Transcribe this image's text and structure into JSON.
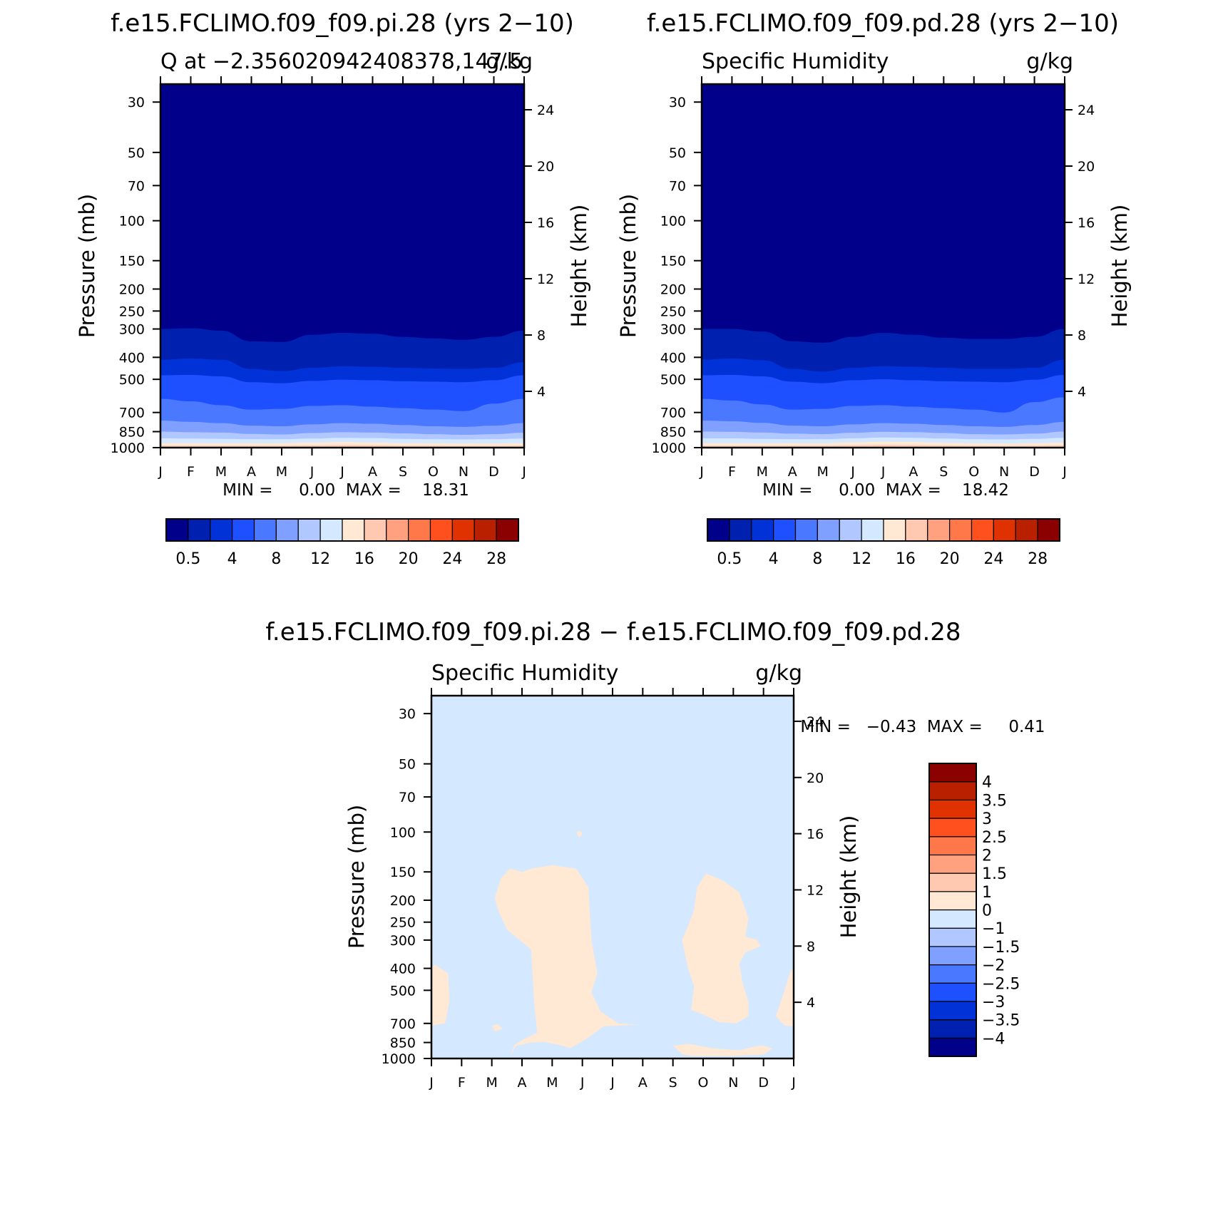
{
  "chart_data": [
    {
      "type": "heatmap",
      "title": "f.e15.FCLIMO.f09_f09.pi.28 (yrs 2−10)",
      "subtitle_left": "Q at −2.356020942408378,147.5",
      "subtitle_right": "g/kg",
      "ylabel": "Pressure (mb)",
      "ylabel_right": "Height (km)",
      "pressure_ticks": [
        30,
        50,
        70,
        100,
        150,
        200,
        250,
        300,
        400,
        500,
        700,
        850,
        1000
      ],
      "height_ticks": [
        4,
        8,
        12,
        16,
        20,
        24
      ],
      "months": [
        "J",
        "F",
        "M",
        "A",
        "M",
        "J",
        "J",
        "A",
        "S",
        "O",
        "N",
        "D",
        "J"
      ],
      "ylim": [
        1000,
        25
      ],
      "stats": "MIN =     0.00  MAX =    18.31",
      "colorbar": {
        "colors": [
          "#00008b",
          "#0020b0",
          "#0032d8",
          "#1e50ff",
          "#4a78ff",
          "#7fa0ff",
          "#b0c8ff",
          "#d4e8ff",
          "#ffe8d4",
          "#ffc8b0",
          "#ffa07f",
          "#ff784a",
          "#ff501e",
          "#e03200",
          "#b82000",
          "#8b0000"
        ],
        "labels": [
          "0.5",
          "4",
          "8",
          "12",
          "16",
          "20",
          "24",
          "28"
        ]
      },
      "layers": [
        {
          "top_pressure": [
            300,
            298,
            305,
            340,
            342,
            318,
            312,
            315,
            325,
            330,
            335,
            325,
            305
          ],
          "color": "#0020b0"
        },
        {
          "top_pressure": [
            410,
            405,
            410,
            450,
            460,
            445,
            438,
            440,
            445,
            448,
            450,
            445,
            420
          ],
          "color": "#0032d8"
        },
        {
          "top_pressure": [
            480,
            478,
            485,
            515,
            520,
            508,
            502,
            505,
            510,
            512,
            515,
            505,
            480
          ],
          "color": "#1e50ff"
        },
        {
          "top_pressure": [
            610,
            625,
            650,
            680,
            675,
            655,
            650,
            660,
            670,
            680,
            690,
            640,
            610
          ],
          "color": "#4a78ff"
        },
        {
          "top_pressure": [
            760,
            770,
            780,
            800,
            805,
            790,
            780,
            785,
            795,
            805,
            810,
            800,
            780
          ],
          "color": "#7fa0ff"
        },
        {
          "top_pressure": [
            850,
            855,
            858,
            870,
            875,
            862,
            855,
            858,
            865,
            872,
            878,
            872,
            860
          ],
          "color": "#b0c8ff"
        },
        {
          "top_pressure": [
            910,
            912,
            915,
            918,
            918,
            912,
            905,
            908,
            915,
            918,
            920,
            918,
            912
          ],
          "color": "#d4e8ff"
        },
        {
          "top_pressure": [
            955,
            955,
            955,
            955,
            955,
            950,
            945,
            948,
            955,
            955,
            958,
            958,
            955
          ],
          "color": "#ffe8d4"
        },
        {
          "top_pressure": [
            980,
            980,
            980,
            980,
            980,
            978,
            975,
            976,
            980,
            980,
            982,
            982,
            980
          ],
          "color": "#ffc8b0"
        }
      ],
      "background_color": "#00008b"
    },
    {
      "type": "heatmap",
      "title": "f.e15.FCLIMO.f09_f09.pd.28 (yrs 2−10)",
      "subtitle_left": "Specific Humidity",
      "subtitle_right": "g/kg",
      "ylabel": "Pressure (mb)",
      "ylabel_right": "Height (km)",
      "pressure_ticks": [
        30,
        50,
        70,
        100,
        150,
        200,
        250,
        300,
        400,
        500,
        700,
        850,
        1000
      ],
      "height_ticks": [
        4,
        8,
        12,
        16,
        20,
        24
      ],
      "months": [
        "J",
        "F",
        "M",
        "A",
        "M",
        "J",
        "J",
        "A",
        "S",
        "O",
        "N",
        "D",
        "J"
      ],
      "ylim": [
        1000,
        25
      ],
      "stats": "MIN =     0.00  MAX =    18.42",
      "colorbar": {
        "colors": [
          "#00008b",
          "#0020b0",
          "#0032d8",
          "#1e50ff",
          "#4a78ff",
          "#7fa0ff",
          "#b0c8ff",
          "#d4e8ff",
          "#ffe8d4",
          "#ffc8b0",
          "#ffa07f",
          "#ff784a",
          "#ff501e",
          "#e03200",
          "#b82000",
          "#8b0000"
        ],
        "labels": [
          "0.5",
          "4",
          "8",
          "12",
          "16",
          "20",
          "24",
          "28"
        ]
      },
      "layers": [
        {
          "top_pressure": [
            300,
            300,
            308,
            340,
            345,
            325,
            312,
            318,
            328,
            332,
            332,
            325,
            300
          ],
          "color": "#0020b0"
        },
        {
          "top_pressure": [
            410,
            405,
            412,
            450,
            462,
            445,
            438,
            440,
            445,
            450,
            450,
            445,
            410
          ],
          "color": "#0032d8"
        },
        {
          "top_pressure": [
            480,
            478,
            485,
            512,
            520,
            505,
            500,
            505,
            510,
            512,
            515,
            502,
            478
          ],
          "color": "#1e50ff"
        },
        {
          "top_pressure": [
            610,
            620,
            645,
            680,
            675,
            655,
            650,
            660,
            670,
            680,
            700,
            630,
            600
          ],
          "color": "#4a78ff"
        },
        {
          "top_pressure": [
            760,
            765,
            778,
            800,
            805,
            790,
            780,
            785,
            795,
            805,
            810,
            795,
            770
          ],
          "color": "#7fa0ff"
        },
        {
          "top_pressure": [
            850,
            852,
            858,
            868,
            872,
            860,
            852,
            855,
            862,
            872,
            875,
            868,
            850
          ],
          "color": "#b0c8ff"
        },
        {
          "top_pressure": [
            910,
            910,
            915,
            918,
            918,
            910,
            903,
            905,
            912,
            918,
            920,
            915,
            905
          ],
          "color": "#d4e8ff"
        },
        {
          "top_pressure": [
            955,
            955,
            955,
            955,
            955,
            948,
            942,
            945,
            952,
            955,
            958,
            955,
            950
          ],
          "color": "#ffe8d4"
        },
        {
          "top_pressure": [
            980,
            980,
            980,
            980,
            980,
            976,
            972,
            974,
            978,
            980,
            982,
            980,
            978
          ],
          "color": "#ffc8b0"
        }
      ],
      "background_color": "#00008b"
    },
    {
      "type": "heatmap",
      "title": "f.e15.FCLIMO.f09_f09.pi.28 − f.e15.FCLIMO.f09_f09.pd.28",
      "subtitle_left": "Specific Humidity",
      "subtitle_right": "g/kg",
      "ylabel": "Pressure (mb)",
      "ylabel_right": "Height (km)",
      "pressure_ticks": [
        30,
        50,
        70,
        100,
        150,
        200,
        250,
        300,
        400,
        500,
        700,
        850,
        1000
      ],
      "height_ticks": [
        4,
        8,
        12,
        16,
        20,
        24
      ],
      "months": [
        "J",
        "F",
        "M",
        "A",
        "M",
        "J",
        "J",
        "A",
        "S",
        "O",
        "N",
        "D",
        "J"
      ],
      "ylim": [
        1000,
        25
      ],
      "stats": "MIN =   −0.43  MAX =     0.41",
      "colorbar": {
        "colors": [
          "#00008b",
          "#0020b0",
          "#0032d8",
          "#1e50ff",
          "#4a78ff",
          "#7fa0ff",
          "#b0c8ff",
          "#d4e8ff",
          "#ffe8d4",
          "#ffc8b0",
          "#ffa07f",
          "#ff784a",
          "#ff501e",
          "#e03200",
          "#b82000",
          "#8b0000"
        ],
        "labels": [
          "−4",
          "−3.5",
          "−3",
          "−2.5",
          "−2",
          "−1.5",
          "−1",
          "0",
          "1",
          "1.5",
          "2",
          "2.5",
          "3",
          "3.5",
          "4"
        ]
      },
      "background_color": "#d4e8ff",
      "positive_color": "#ffe8d4",
      "positive_regions": [
        [
          [
            0.0,
            400
          ],
          [
            0.1,
            385
          ],
          [
            0.55,
            420
          ],
          [
            0.6,
            560
          ],
          [
            0.45,
            700
          ],
          [
            0.0,
            715
          ]
        ],
        [
          [
            2.0,
            720
          ],
          [
            2.2,
            705
          ],
          [
            2.35,
            740
          ],
          [
            2.1,
            760
          ]
        ],
        [
          [
            2.6,
            980
          ],
          [
            2.8,
            880
          ],
          [
            3.3,
            850
          ],
          [
            3.7,
            845
          ],
          [
            4.2,
            870
          ],
          [
            4.6,
            900
          ],
          [
            5.2,
            810
          ],
          [
            5.7,
            720
          ],
          [
            6.9,
            710
          ],
          [
            6.2,
            700
          ],
          [
            5.6,
            620
          ],
          [
            5.3,
            510
          ],
          [
            5.5,
            420
          ],
          [
            5.3,
            300
          ],
          [
            5.2,
            175
          ],
          [
            4.8,
            145
          ],
          [
            4.0,
            140
          ],
          [
            3.3,
            145
          ],
          [
            3.0,
            150
          ],
          [
            2.6,
            145
          ],
          [
            2.3,
            160
          ],
          [
            2.1,
            195
          ],
          [
            2.2,
            220
          ],
          [
            2.5,
            270
          ],
          [
            3.3,
            330
          ],
          [
            3.4,
            560
          ],
          [
            3.5,
            770
          ],
          [
            3.0,
            830
          ],
          [
            2.75,
            870
          ]
        ],
        [
          [
            8.0,
            880
          ],
          [
            8.5,
            860
          ],
          [
            9.3,
            900
          ],
          [
            10.2,
            920
          ],
          [
            10.8,
            880
          ],
          [
            11.0,
            875
          ],
          [
            11.3,
            905
          ],
          [
            11.0,
            960
          ],
          [
            10.0,
            975
          ],
          [
            8.6,
            975
          ],
          [
            8.3,
            955
          ]
        ],
        [
          [
            8.3,
            300
          ],
          [
            8.5,
            260
          ],
          [
            8.7,
            220
          ],
          [
            8.8,
            175
          ],
          [
            9.1,
            152
          ],
          [
            9.7,
            165
          ],
          [
            10.2,
            185
          ],
          [
            10.5,
            240
          ],
          [
            10.4,
            290
          ],
          [
            10.8,
            300
          ],
          [
            10.9,
            320
          ],
          [
            10.4,
            340
          ],
          [
            10.2,
            380
          ],
          [
            10.3,
            460
          ],
          [
            10.5,
            560
          ],
          [
            10.5,
            650
          ],
          [
            10.1,
            700
          ],
          [
            9.5,
            690
          ],
          [
            9.0,
            640
          ],
          [
            8.6,
            610
          ],
          [
            8.7,
            480
          ],
          [
            8.5,
            400
          ]
        ],
        [
          [
            11.5,
            600
          ],
          [
            11.7,
            500
          ],
          [
            11.8,
            450
          ],
          [
            11.9,
            410
          ],
          [
            12.0,
            400
          ],
          [
            12.0,
            720
          ],
          [
            11.7,
            715
          ],
          [
            11.4,
            650
          ]
        ],
        [
          [
            4.8,
            101
          ],
          [
            4.9,
            98
          ],
          [
            5.0,
            102
          ],
          [
            4.9,
            106
          ]
        ]
      ]
    }
  ]
}
